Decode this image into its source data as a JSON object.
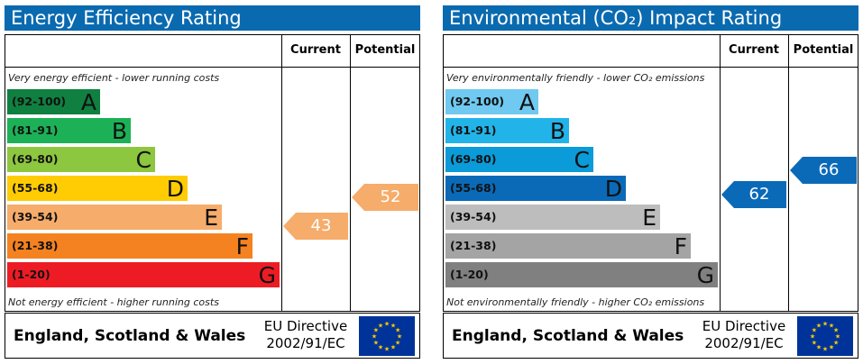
{
  "chart_data": [
    {
      "type": "bar",
      "title": "Energy Efficiency Rating",
      "columns": [
        "Current",
        "Potential"
      ],
      "top_note": "Very energy efficient - lower running costs",
      "bottom_note": "Not energy efficient - higher running costs",
      "bands": [
        {
          "range": "(92-100)",
          "letter": "A",
          "color": "#0f8040"
        },
        {
          "range": "(81-91)",
          "letter": "B",
          "color": "#1db157"
        },
        {
          "range": "(69-80)",
          "letter": "C",
          "color": "#8dc63f"
        },
        {
          "range": "(55-68)",
          "letter": "D",
          "color": "#ffcc04"
        },
        {
          "range": "(39-54)",
          "letter": "E",
          "color": "#f6ac6a"
        },
        {
          "range": "(21-38)",
          "letter": "F",
          "color": "#f58220"
        },
        {
          "range": "(1-20)",
          "letter": "G",
          "color": "#ed1c24"
        }
      ],
      "current": {
        "value": "43",
        "band": "E",
        "color": "#f6ac6a"
      },
      "potential": {
        "value": "52",
        "band": "E",
        "color": "#f6ac6a"
      },
      "footer": {
        "region": "England, Scotland & Wales",
        "directive_line1": "EU Directive",
        "directive_line2": "2002/91/EC"
      }
    },
    {
      "type": "bar",
      "title": "Environmental (CO₂) Impact Rating",
      "columns": [
        "Current",
        "Potential"
      ],
      "top_note": "Very environmentally friendly - lower CO₂ emissions",
      "bottom_note": "Not environmentally friendly - higher CO₂ emissions",
      "bands": [
        {
          "range": "(92-100)",
          "letter": "A",
          "color": "#6fc9f0"
        },
        {
          "range": "(81-91)",
          "letter": "B",
          "color": "#22b4e8"
        },
        {
          "range": "(69-80)",
          "letter": "C",
          "color": "#0a9bd8"
        },
        {
          "range": "(55-68)",
          "letter": "D",
          "color": "#0a6ab8"
        },
        {
          "range": "(39-54)",
          "letter": "E",
          "color": "#bdbdbd"
        },
        {
          "range": "(21-38)",
          "letter": "F",
          "color": "#a4a4a4"
        },
        {
          "range": "(1-20)",
          "letter": "G",
          "color": "#808080"
        }
      ],
      "current": {
        "value": "62",
        "band": "D",
        "color": "#0a6ab8"
      },
      "potential": {
        "value": "66",
        "band": "D",
        "color": "#0a6ab8"
      },
      "footer": {
        "region": "England, Scotland & Wales",
        "directive_line1": "EU Directive",
        "directive_line2": "2002/91/EC"
      }
    }
  ]
}
